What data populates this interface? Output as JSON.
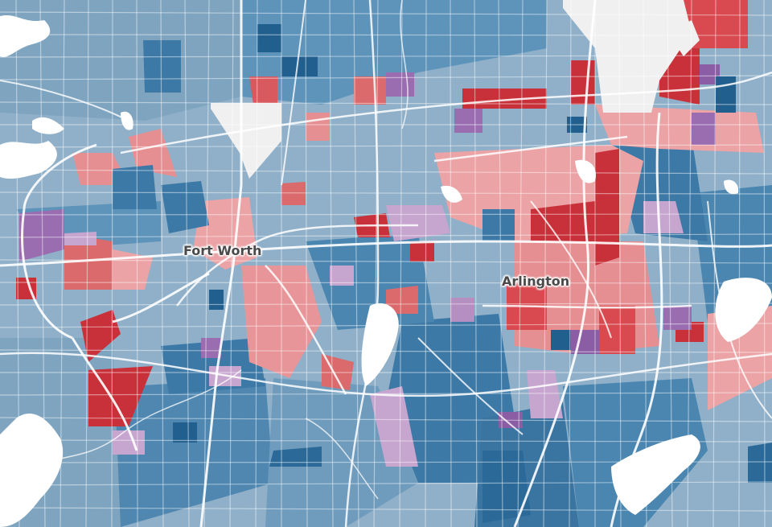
{
  "map": {
    "cities": [
      {
        "name": "Fort Worth"
      },
      {
        "name": "Arlington"
      }
    ],
    "colors": {
      "blue_dark": "#2b6a98",
      "blue_mid": "#4b86b0",
      "blue_light": "#8fb0c8",
      "red_dark": "#c8313a",
      "red_mid": "#db6a6c",
      "red_light": "#eba3a6",
      "purple": "#9a6db0",
      "purple_light": "#c6a5cf",
      "water": "#ffffff",
      "no_data": "#f0f0f0",
      "roads": "#ffffff"
    }
  }
}
